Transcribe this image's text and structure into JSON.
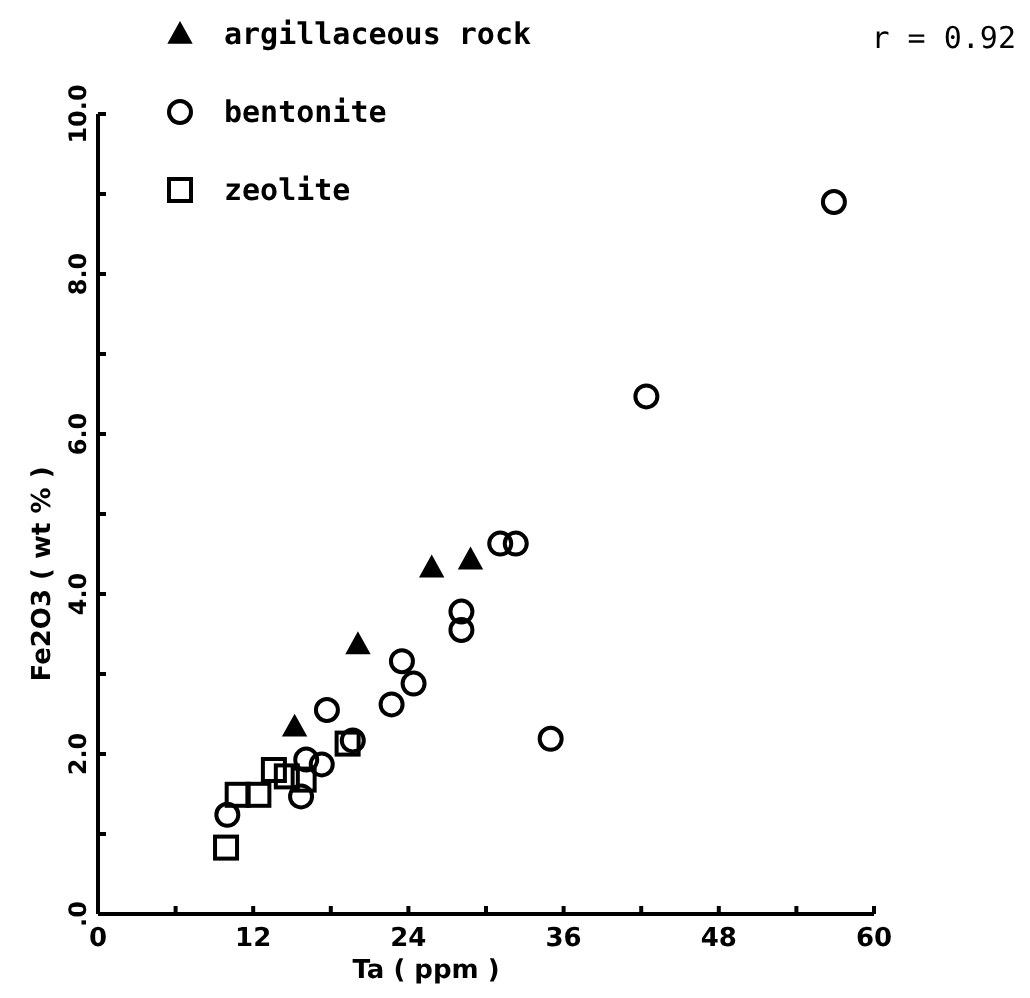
{
  "chart_data": {
    "type": "scatter",
    "xlabel": "Ta ( ppm )",
    "ylabel": "Fe2O3 ( wt % )",
    "annotations": [
      "r = 0.92"
    ],
    "xlim": [
      0,
      60
    ],
    "ylim": [
      0,
      10
    ],
    "xticks": [
      0,
      {
        "value": 6,
        "label": null
      },
      12,
      {
        "value": 18,
        "label": null
      },
      24,
      {
        "value": 30,
        "label": null
      },
      36,
      {
        "value": 42,
        "label": null
      },
      48,
      {
        "value": 54,
        "label": null
      },
      60
    ],
    "yticks": [
      {
        "value": 0,
        "label": ".0"
      },
      {
        "value": 1,
        "label": null
      },
      {
        "value": 2,
        "label": "2.0"
      },
      {
        "value": 3,
        "label": null
      },
      {
        "value": 4,
        "label": "4.0"
      },
      {
        "value": 5,
        "label": null
      },
      {
        "value": 6,
        "label": "6.0"
      },
      {
        "value": 7,
        "label": null
      },
      {
        "value": 8,
        "label": "8.0"
      },
      {
        "value": 9,
        "label": null
      },
      {
        "value": 10,
        "label": "10.0"
      }
    ],
    "legend": "top left",
    "grid": false,
    "series": [
      {
        "name": "argillaceous rock",
        "color": "#000000",
        "marker": "triangle",
        "x": [
          15.2,
          20.1,
          25.8,
          28.8
        ],
        "values": [
          2.34,
          3.37,
          4.33,
          4.43
        ]
      },
      {
        "name": "bentonite",
        "color": "#000000",
        "marker": "circle",
        "x": [
          10.0,
          15.7,
          16.1,
          17.3,
          17.7,
          19.7,
          22.7,
          23.5,
          24.4,
          28.1,
          28.1,
          31.1,
          32.3,
          35.0,
          42.4,
          56.9
        ],
        "values": [
          1.24,
          1.47,
          1.93,
          1.87,
          2.55,
          2.17,
          2.62,
          3.16,
          2.88,
          3.78,
          3.55,
          4.63,
          4.63,
          2.19,
          6.47,
          8.9
        ]
      },
      {
        "name": "zeolite",
        "color": "#000000",
        "marker": "square",
        "x": [
          9.9,
          10.8,
          12.4,
          13.6,
          14.6,
          15.9,
          19.3
        ],
        "values": [
          0.83,
          1.49,
          1.49,
          1.8,
          1.72,
          1.68,
          2.13
        ]
      }
    ]
  }
}
